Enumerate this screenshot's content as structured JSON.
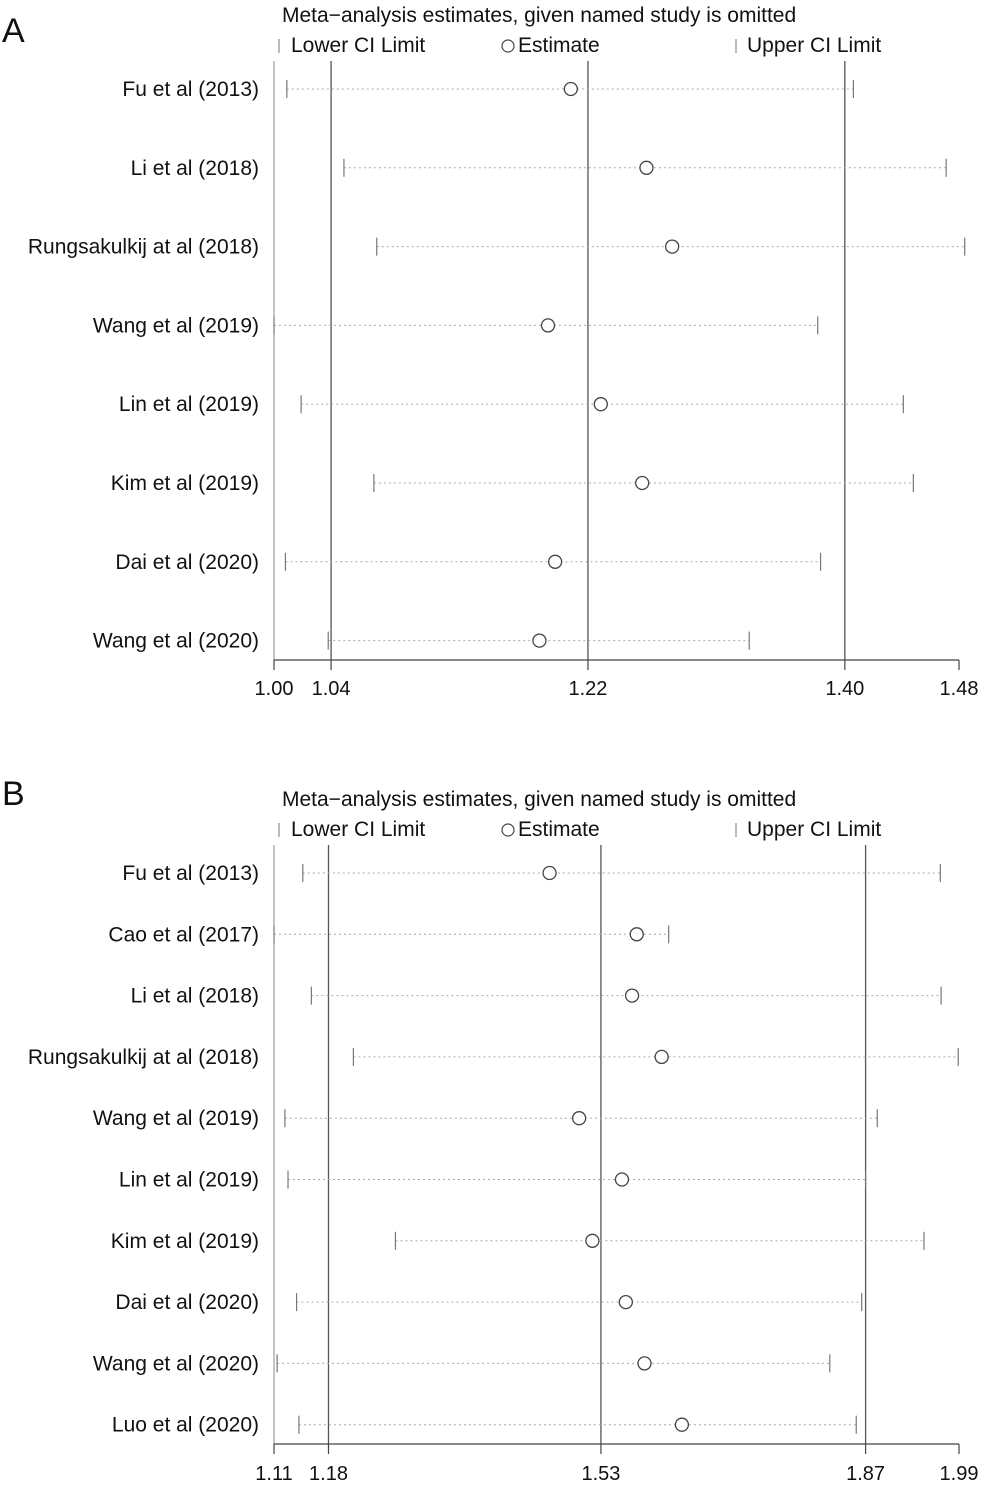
{
  "chart_data": [
    {
      "type": "scatter",
      "panel_label": "A",
      "title": "Meta−analysis estimates, given named study is omitted",
      "legend": [
        "Lower CI Limit",
        "Estimate",
        "Upper CI Limit"
      ],
      "xlim": [
        1.0,
        1.48
      ],
      "xticks": [
        "1.00",
        "1.04",
        "1.22",
        "1.40",
        "1.48"
      ],
      "reference_lines": [
        1.04,
        1.22,
        1.4
      ],
      "studies": [
        "Fu et al (2013)",
        "Li et al (2018)",
        "Rungsakulkij at al (2018)",
        "Wang et al (2019)",
        "Lin et al (2019)",
        "Kim et al (2019)",
        "Dai et al (2020)",
        "Wang et al (2020)"
      ],
      "lower": [
        1.009,
        1.049,
        1.072,
        1.0,
        1.019,
        1.07,
        1.008,
        1.038
      ],
      "estimate": [
        1.208,
        1.261,
        1.279,
        1.192,
        1.229,
        1.258,
        1.197,
        1.186
      ],
      "upper": [
        1.406,
        1.471,
        1.484,
        1.381,
        1.441,
        1.448,
        1.383,
        1.333
      ]
    },
    {
      "type": "scatter",
      "panel_label": "B",
      "title": "Meta−analysis estimates, given named study is omitted",
      "legend": [
        "Lower CI Limit",
        "Estimate",
        "Upper CI Limit"
      ],
      "xlim": [
        1.11,
        1.99
      ],
      "xticks": [
        "1.11",
        "1.18",
        "1.53",
        "1.87",
        "1.99"
      ],
      "reference_lines": [
        1.18,
        1.53,
        1.87
      ],
      "studies": [
        "Fu et al (2013)",
        "Cao et al (2017)",
        "Li et al (2018)",
        "Rungsakulkij at al (2018)",
        "Wang et al (2019)",
        "Lin et al (2019)",
        "Kim et al (2019)",
        "Dai et al (2020)",
        "Wang et al (2020)",
        "Luo et al (2020)"
      ],
      "lower": [
        1.147,
        1.11,
        1.158,
        1.212,
        1.124,
        1.128,
        1.266,
        1.139,
        1.114,
        1.142
      ],
      "estimate": [
        1.464,
        1.576,
        1.57,
        1.608,
        1.502,
        1.557,
        1.519,
        1.562,
        1.586,
        1.634
      ],
      "upper": [
        1.966,
        1.617,
        1.967,
        1.989,
        1.885,
        1.87,
        1.945,
        1.865,
        1.824,
        1.858
      ]
    }
  ]
}
